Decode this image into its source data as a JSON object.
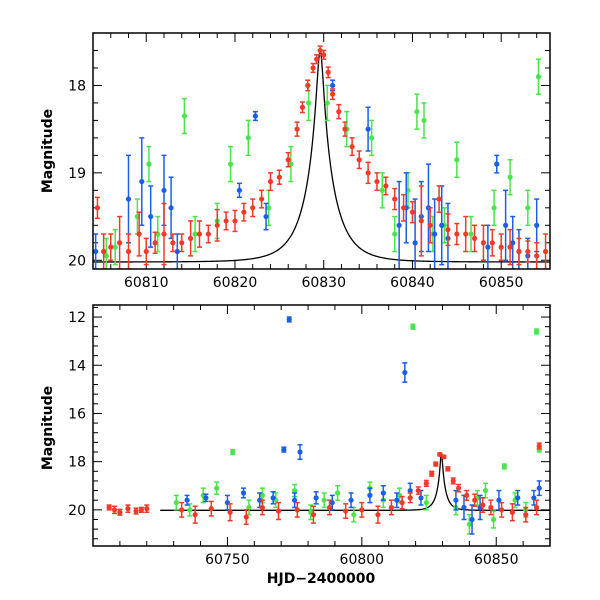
{
  "figure": {
    "xlabel": "HJD−2400000"
  },
  "colors": {
    "red": "#f23a2a",
    "blue": "#1a5fe6",
    "green": "#4de34d",
    "model": "#000000"
  },
  "chart_data": [
    {
      "type": "scatter",
      "title": "",
      "xlabel": "",
      "ylabel": "Magnitude",
      "xlim": [
        60804,
        60855.5
      ],
      "ylim": [
        20.1,
        17.4
      ],
      "y_inverted": true,
      "x_ticks": [
        60810,
        60820,
        60830,
        60840,
        60850
      ],
      "y_ticks": [
        18,
        19,
        20
      ],
      "model_curve": {
        "peak_x": 60829.6,
        "peak_mag": 17.6,
        "baseline_mag": 20.02,
        "width_days": 3.2
      },
      "series": [
        {
          "name": "",
          "color": "red",
          "x": [
            60804.5,
            60805.2,
            60806.0,
            60807.0,
            60808.0,
            60809.2,
            60810.0,
            60811.0,
            60812.0,
            60813.0,
            60814.0,
            60815.0,
            60816.0,
            60817.0,
            60818.0,
            60819.0,
            60820.0,
            60821.0,
            60822.0,
            60823.0,
            60824.0,
            60825.0,
            60826.0,
            60827.0,
            60827.6,
            60828.2,
            60828.8,
            60829.2,
            60829.6,
            60830.0,
            60830.5,
            60831.0,
            60831.7,
            60832.4,
            60833.2,
            60834.0,
            60835.0,
            60836.0,
            60837.0,
            60838.0,
            60839.0,
            60840.0,
            60841.0,
            60842.0,
            60843.0,
            60844.0,
            60845.0,
            60846.0,
            60847.0,
            60848.0,
            60849.0,
            60850.0,
            60851.0,
            60852.0,
            60853.0,
            60854.0,
            60855.0
          ],
          "y": [
            19.4,
            19.9,
            19.85,
            19.8,
            19.9,
            19.7,
            19.9,
            19.8,
            19.7,
            19.8,
            19.8,
            19.75,
            19.7,
            19.7,
            19.6,
            19.55,
            19.55,
            19.45,
            19.4,
            19.3,
            19.1,
            19.05,
            18.85,
            18.5,
            18.25,
            18.0,
            17.8,
            17.7,
            17.6,
            17.65,
            17.85,
            18.1,
            18.3,
            18.5,
            18.7,
            18.85,
            19.0,
            19.1,
            19.15,
            19.3,
            19.4,
            19.45,
            19.55,
            19.6,
            19.3,
            19.65,
            19.7,
            19.7,
            19.75,
            19.8,
            19.8,
            19.85,
            19.85,
            19.9,
            19.9,
            19.95,
            19.9
          ],
          "err": [
            0.12,
            0.2,
            0.15,
            0.3,
            0.2,
            0.25,
            0.15,
            0.12,
            0.35,
            0.1,
            0.1,
            0.2,
            0.15,
            0.1,
            0.18,
            0.1,
            0.12,
            0.1,
            0.1,
            0.1,
            0.1,
            0.08,
            0.08,
            0.08,
            0.06,
            0.06,
            0.05,
            0.05,
            0.05,
            0.05,
            0.06,
            0.06,
            0.08,
            0.08,
            0.1,
            0.1,
            0.12,
            0.1,
            0.1,
            0.12,
            0.15,
            0.12,
            0.4,
            0.2,
            0.15,
            0.18,
            0.12,
            0.2,
            0.15,
            0.2,
            0.15,
            0.15,
            0.2,
            0.15,
            0.12,
            0.15,
            0.2
          ]
        },
        {
          "name": "",
          "color": "blue",
          "x": [
            60804.3,
            60808.0,
            60809.5,
            60810.5,
            60812.0,
            60812.8,
            60813.5,
            60820.5,
            60822.3,
            60823.5,
            60831.0,
            60835.0,
            60838.5,
            60839.3,
            60840.3,
            60841.0,
            60841.8,
            60842.5,
            60843.3,
            60844.0,
            60848.5,
            60849.5,
            60850.5,
            60851.3,
            60852.0,
            60853.0,
            60854.0
          ],
          "y": [
            19.9,
            19.3,
            19.1,
            19.5,
            19.2,
            19.4,
            19.9,
            19.2,
            18.35,
            19.5,
            18.0,
            18.5,
            19.6,
            19.4,
            19.8,
            19.5,
            19.4,
            19.7,
            19.6,
            19.75,
            19.85,
            18.9,
            19.6,
            19.8,
            19.9,
            19.95,
            19.6
          ],
          "err": [
            0.2,
            0.5,
            0.5,
            0.35,
            0.4,
            0.35,
            0.2,
            0.08,
            0.05,
            0.15,
            0.06,
            0.25,
            0.5,
            0.4,
            0.5,
            0.4,
            0.5,
            0.4,
            0.45,
            0.4,
            0.25,
            0.1,
            0.4,
            0.3,
            0.25,
            0.2,
            0.3
          ]
        },
        {
          "name": "",
          "color": "green",
          "x": [
            60805.5,
            60806.5,
            60809.0,
            60810.3,
            60811.3,
            60814.3,
            60815.5,
            60818.0,
            60819.5,
            60821.5,
            60823.8,
            60826.3,
            60828.3,
            60830.4,
            60832.6,
            60835.4,
            60836.6,
            60838.0,
            60839.5,
            60840.5,
            60841.3,
            60842.3,
            60843.6,
            60845.0,
            60846.6,
            60849.2,
            60851.0,
            60853.0,
            60854.2
          ],
          "y": [
            19.95,
            19.85,
            19.5,
            18.9,
            19.7,
            18.35,
            19.7,
            19.55,
            18.9,
            18.6,
            19.4,
            18.9,
            18.2,
            18.2,
            18.5,
            18.6,
            19.2,
            19.7,
            19.2,
            18.3,
            18.4,
            19.7,
            19.6,
            18.85,
            19.7,
            19.4,
            19.05,
            19.4,
            17.9
          ]
        }
      ]
    },
    {
      "type": "scatter",
      "title": "",
      "xlabel": "HJD−2400000",
      "ylabel": "Magnitude",
      "xlim": [
        60700,
        60870
      ],
      "ylim": [
        21.5,
        11.5
      ],
      "y_inverted": true,
      "x_ticks": [
        60750,
        60800,
        60850
      ],
      "y_ticks": [
        12,
        14,
        16,
        18,
        20
      ],
      "model_curve": {
        "peak_x": 60829.6,
        "peak_mag": 17.6,
        "baseline_mag": 20.02,
        "width_days": 3.2,
        "x_start": 60725
      },
      "series": [
        {
          "name": "",
          "color": "red",
          "x": [
            60706,
            60708,
            60710,
            60713,
            60716,
            60718,
            60720,
            60733,
            60738,
            60744,
            60751,
            60757,
            60763,
            60769,
            60776,
            60782,
            60788,
            60794,
            60800,
            60806,
            60811,
            60815,
            60818,
            60821,
            60824,
            60826,
            60827.5,
            60829,
            60830.5,
            60832,
            60834,
            60836,
            60839,
            60842,
            60845,
            60848,
            60852,
            60856,
            60861,
            60865,
            60866
          ],
          "y": [
            19.9,
            20.0,
            20.1,
            19.95,
            20.05,
            20.0,
            19.95,
            20.0,
            20.2,
            19.95,
            20.1,
            20.3,
            19.9,
            20.05,
            20.0,
            20.2,
            19.9,
            20.05,
            20.0,
            20.2,
            19.9,
            19.7,
            19.5,
            19.2,
            18.9,
            18.5,
            18.1,
            17.7,
            17.8,
            18.3,
            18.8,
            19.1,
            19.4,
            19.6,
            19.8,
            19.9,
            20.0,
            20.1,
            20.2,
            19.9,
            17.35
          ],
          "err": [
            0.1,
            0.15,
            0.12,
            0.15,
            0.12,
            0.1,
            0.15,
            0.3,
            0.35,
            0.3,
            0.35,
            0.3,
            0.3,
            0.35,
            0.3,
            0.35,
            0.3,
            0.3,
            0.3,
            0.35,
            0.3,
            0.25,
            0.2,
            0.15,
            0.12,
            0.1,
            0.08,
            0.06,
            0.06,
            0.08,
            0.12,
            0.15,
            0.2,
            0.25,
            0.3,
            0.3,
            0.3,
            0.35,
            0.3,
            0.3,
            0.12
          ]
        },
        {
          "name": "",
          "color": "blue",
          "x": [
            60735,
            60742,
            60750,
            60756,
            60762,
            60767,
            60771,
            60773,
            60775,
            60777,
            60783,
            60789,
            60796,
            60803,
            60808,
            60813,
            60816,
            60818,
            60822,
            60835,
            60838,
            60841,
            60844,
            60851,
            60858,
            60864,
            60866
          ],
          "y": [
            19.6,
            19.5,
            19.7,
            19.3,
            19.6,
            19.5,
            17.5,
            12.1,
            19.6,
            17.6,
            19.5,
            19.7,
            19.6,
            19.4,
            19.3,
            19.6,
            14.3,
            19.2,
            19.5,
            19.6,
            19.9,
            20.4,
            19.9,
            19.6,
            19.5,
            19.5,
            19.1
          ],
          "err": [
            0.2,
            0.15,
            0.3,
            0.2,
            0.3,
            0.25,
            0.1,
            0.1,
            0.3,
            0.3,
            0.25,
            0.3,
            0.3,
            0.3,
            0.3,
            0.3,
            0.4,
            0.3,
            0.3,
            0.4,
            0.5,
            0.6,
            0.5,
            0.4,
            0.3,
            0.3,
            0.3
          ]
        },
        {
          "name": "",
          "color": "green",
          "x": [
            60731,
            60736,
            60741,
            60746,
            60752,
            60758,
            60763,
            60768,
            60775,
            60781,
            60786,
            60791,
            60797,
            60803,
            60808,
            60814,
            60819,
            60824,
            60835,
            60840,
            60843,
            60846,
            60849,
            60853,
            60857,
            60861,
            60865,
            60866
          ],
          "y": [
            19.7,
            20.0,
            19.4,
            19.1,
            17.6,
            19.9,
            19.4,
            19.6,
            19.2,
            20.1,
            19.6,
            19.3,
            20.2,
            19.1,
            19.6,
            19.4,
            12.4,
            19.7,
            19.9,
            20.6,
            19.5,
            19.2,
            20.4,
            18.2,
            19.6,
            20.0,
            12.6,
            17.5
          ],
          "err": [
            0.3,
            0.25,
            0.3,
            0.25,
            0.1,
            0.3,
            0.3,
            0.3,
            0.25,
            0.3,
            0.3,
            0.3,
            0.3,
            0.25,
            0.3,
            0.3,
            0.1,
            0.3,
            0.3,
            0.4,
            0.3,
            0.3,
            0.35,
            0.1,
            0.3,
            0.3,
            0.1,
            0.1
          ]
        }
      ]
    }
  ]
}
